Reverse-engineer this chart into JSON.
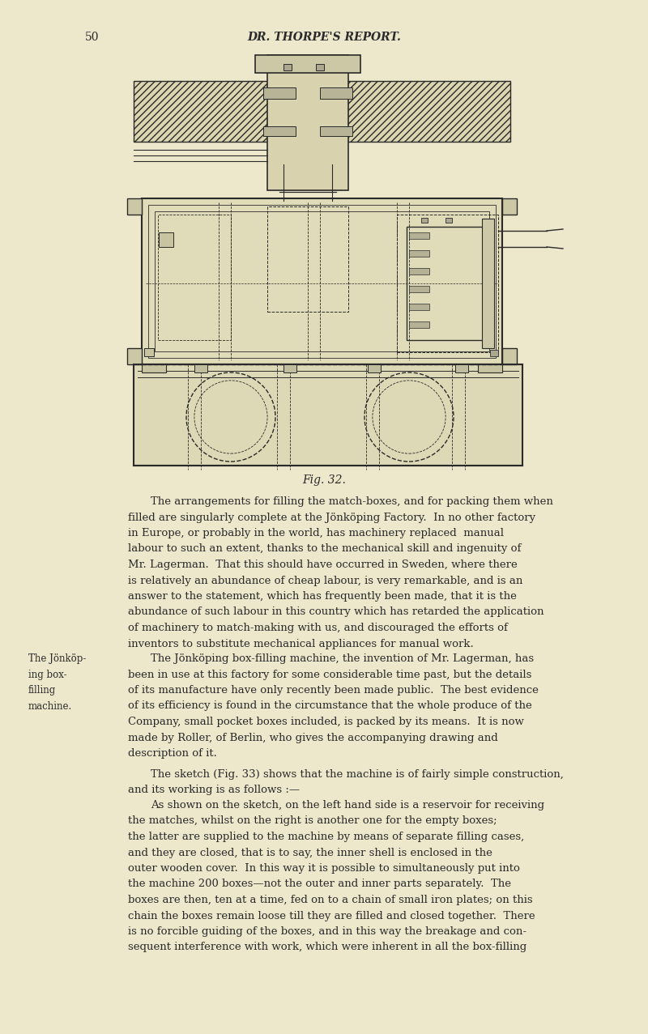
{
  "background_color": "#ede8cc",
  "page_number": "50",
  "header_text": "DR. THORPE'S REPORT.",
  "fig_caption": "Fig. 32.",
  "sidebar_text": [
    "The Jönköp-",
    "ing box-",
    "filling",
    "machine."
  ],
  "para1_lines": [
    "The arrangements for filling the match-boxes, and for packing them when",
    "filled are singularly complete at the Jönköping Factory.  In no other factory",
    "in Europe, or probably in the world, has machinery replaced  manual",
    "labour to such an extent, thanks to the mechanical skill and ingenuity of",
    "Mr. Lagerman.  That this should have occurred in Sweden, where there",
    "is relatively an abundance of cheap labour, is very remarkable, and is an",
    "answer to the statement, which has frequently been made, that it is the",
    "abundance of such labour in this country which has retarded the application",
    "of machinery to match-making with us, and discouraged the efforts of",
    "inventors to substitute mechanical appliances for manual work."
  ],
  "para2_lines": [
    "The Jönköping box-filling machine, the invention of Mr. Lagerman, has",
    "been in use at this factory for some considerable time past, but the details",
    "of its manufacture have only recently been made public.  The best evidence",
    "of its efficiency is found in the circumstance that the whole produce of the",
    "Company, small pocket boxes included, is packed by its means.  It is now",
    "made by Roller, of Berlin, who gives the accompanying drawing and",
    "description of it."
  ],
  "para3_lines": [
    "The sketch (Fig. 33) shows that the machine is of fairly simple construction,",
    "and its working is as follows :—"
  ],
  "para4_lines": [
    "As shown on the sketch, on the left hand side is a reservoir for receiving",
    "the matches, whilst on the right is another one for the empty boxes;",
    "the latter are supplied to the machine by means of separate filling cases,",
    "and they are closed, that is to say, the inner shell is enclosed in the",
    "outer wooden cover.  In this way it is possible to simultaneously put into",
    "the machine 200 boxes—not the outer and inner parts separately.  The",
    "boxes are then, ten at a time, fed on to a chain of small iron plates; on this",
    "chain the boxes remain loose till they are filled and closed together.  There",
    "is no forcible guiding of the boxes, and in this way the breakage and con-",
    "sequent interference with work, which were inherent in all the box-filling"
  ]
}
